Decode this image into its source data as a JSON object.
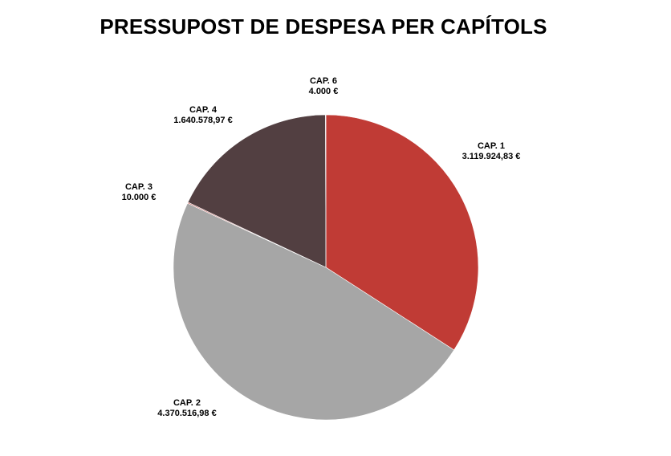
{
  "chart_data": {
    "type": "pie",
    "title": "PRESSUPOST DE DESPESA PER CAPÍTOLS",
    "legend": "none",
    "slices": [
      {
        "label": "CAP. 1",
        "value": 3119924.83,
        "value_label": "3.119.924,83 €",
        "color": "#c03b35"
      },
      {
        "label": "CAP. 2",
        "value": 4370516.98,
        "value_label": "4.370.516,98 €",
        "color": "#a6a6a6"
      },
      {
        "label": "CAP. 3",
        "value": 10000,
        "value_label": "10.000 €",
        "color": "#c0504d"
      },
      {
        "label": "CAP. 4",
        "value": 1640578.97,
        "value_label": "1.640.578,97 €",
        "color": "#523f41"
      },
      {
        "label": "CAP. 6",
        "value": 4000,
        "value_label": "4.000 €",
        "color": "#c03b35"
      }
    ]
  }
}
